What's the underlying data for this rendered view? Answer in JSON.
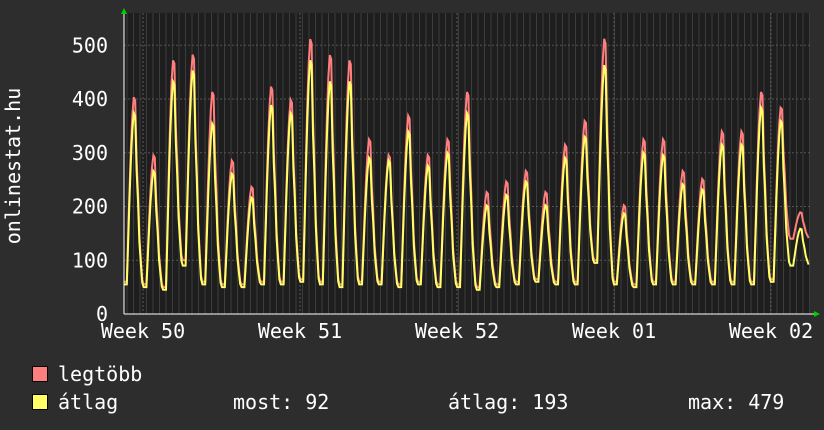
{
  "chart_data": {
    "type": "line",
    "ylabel": "onlinestat.hu",
    "xlabel": "",
    "x_ticks": [
      "Week 50",
      "Week 51",
      "Week 52",
      "Week 01",
      "Week 02"
    ],
    "y_ticks": [
      0,
      100,
      200,
      300,
      400,
      500
    ],
    "ylim": [
      0,
      560
    ],
    "grid": true,
    "background": "#1e1e1e",
    "series": [
      {
        "name": "legtöbb",
        "color": "#ff7f7f",
        "daily_peaks": [
          410,
          300,
          480,
          490,
          420,
          290,
          240,
          430,
          405,
          520,
          490,
          480,
          330,
          300,
          375,
          300,
          330,
          420,
          230,
          250,
          270,
          230,
          320,
          365,
          520,
          205,
          330,
          330,
          270,
          255,
          345,
          345,
          420,
          390,
          190
        ],
        "daily_lows": [
          60,
          55,
          50,
          100,
          60,
          55,
          55,
          60,
          60,
          65,
          60,
          55,
          60,
          60,
          55,
          60,
          55,
          55,
          50,
          55,
          60,
          65,
          60,
          60,
          100,
          60,
          55,
          60,
          60,
          60,
          60,
          60,
          60,
          65,
          140
        ]
      },
      {
        "name": "átlag",
        "color": "#ffff66",
        "daily_peaks": [
          380,
          270,
          440,
          460,
          360,
          265,
          220,
          395,
          380,
          480,
          440,
          440,
          295,
          290,
          345,
          280,
          305,
          380,
          205,
          225,
          250,
          205,
          295,
          335,
          470,
          190,
          305,
          300,
          245,
          235,
          320,
          320,
          390,
          365,
          160
        ],
        "daily_lows": [
          55,
          50,
          45,
          90,
          55,
          50,
          50,
          55,
          55,
          60,
          55,
          50,
          55,
          55,
          50,
          55,
          50,
          50,
          45,
          50,
          55,
          60,
          55,
          55,
          95,
          55,
          50,
          55,
          55,
          55,
          55,
          55,
          55,
          60,
          90
        ]
      }
    ]
  },
  "legend": {
    "max_label": "legtöbb",
    "avg_label": "átlag"
  },
  "stats": {
    "current": "most: 92",
    "average": "átlag: 193",
    "max": "max: 479"
  }
}
